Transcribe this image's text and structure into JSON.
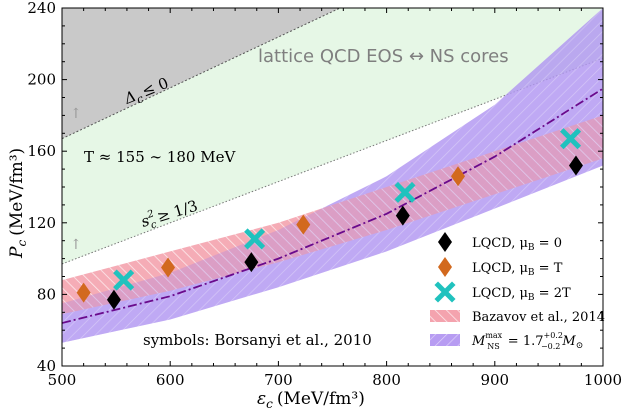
{
  "chart_data": {
    "type": "scatter",
    "title": "",
    "xlabel": "ε_c (MeV/fm³)",
    "ylabel": "P_c (MeV/fm³)",
    "xlim": [
      500,
      1000
    ],
    "ylim": [
      40,
      240
    ],
    "x_ticks": [
      500,
      600,
      700,
      800,
      900,
      1000
    ],
    "y_ticks": [
      40,
      80,
      120,
      160,
      200,
      240
    ],
    "grid": false,
    "legend_position": "bottom-right",
    "regions": {
      "causality": {
        "label": "Δc ≤ 0",
        "color": "#c9c9c9",
        "boundary": [
          [
            500,
            167
          ],
          [
            757,
            240
          ]
        ]
      },
      "temperature_band": {
        "label": "T ≈ 155 ∼ 180 MeV",
        "color": "#e6f7e6",
        "upper": [
          [
            500,
            167
          ],
          [
            757,
            240
          ]
        ],
        "lower": [
          [
            500,
            97
          ],
          [
            1000,
            212
          ]
        ]
      },
      "conformal_bound": {
        "label": "s²c ≥ 1/3",
        "boundary": [
          [
            500,
            97
          ],
          [
            1000,
            212
          ]
        ]
      }
    },
    "bands": [
      {
        "name": "Bazavov et al., 2014",
        "color": "#f4a3ae",
        "upper": [
          [
            500,
            88
          ],
          [
            600,
            104
          ],
          [
            700,
            120
          ],
          [
            800,
            140
          ],
          [
            900,
            160
          ],
          [
            1000,
            180
          ]
        ],
        "lower": [
          [
            500,
            69
          ],
          [
            600,
            82
          ],
          [
            700,
            98
          ],
          [
            800,
            116
          ],
          [
            900,
            136
          ],
          [
            1000,
            156
          ]
        ]
      },
      {
        "name": "M_NS^max = 1.7 (+0.2/−0.2) M_⊙",
        "color": "#a68bf0",
        "upper": [
          [
            500,
            75
          ],
          [
            600,
            92
          ],
          [
            700,
            116
          ],
          [
            800,
            146
          ],
          [
            900,
            186
          ],
          [
            1000,
            240
          ]
        ],
        "lower": [
          [
            500,
            53
          ],
          [
            600,
            66
          ],
          [
            700,
            84
          ],
          [
            800,
            104
          ],
          [
            900,
            128
          ],
          [
            1000,
            152
          ]
        ],
        "center_line": [
          [
            500,
            64
          ],
          [
            600,
            79
          ],
          [
            700,
            100
          ],
          [
            800,
            125
          ],
          [
            900,
            157
          ],
          [
            1000,
            195
          ]
        ]
      }
    ],
    "series": [
      {
        "name": "LQCD, μB = 0",
        "marker": "diamond",
        "color": "#000000",
        "x": [
          548,
          675,
          815,
          975
        ],
        "y": [
          77,
          98,
          124,
          152
        ]
      },
      {
        "name": "LQCD, μB = T",
        "marker": "diamond",
        "color": "#d2691e",
        "x": [
          520,
          598,
          723,
          866
        ],
        "y": [
          81,
          95,
          119,
          146
        ]
      },
      {
        "name": "LQCD, μB = 2T",
        "marker": "cross",
        "color": "#20c2be",
        "x": [
          557,
          678,
          817,
          970
        ],
        "y": [
          88,
          111,
          137,
          167
        ]
      }
    ],
    "legend": [
      "LQCD, μB = 0",
      "LQCD, μB = T",
      "LQCD, μB = 2T",
      "Bazavov et al., 2014",
      "M_NS^max = 1.7 (+0.2/−0.2) M_⊙"
    ],
    "annotations": {
      "main": "lattice QCD EOS ↔ NS cores",
      "source": "symbols: Borsanyi et al., 2010",
      "arrow_glyph": "↑"
    },
    "labels": {
      "x_main": "ε",
      "x_sub": "c",
      "x_unit": "(MeV/fm³)",
      "y_main": "P",
      "y_sub": "c",
      "y_unit": "(MeV/fm³)",
      "delta_main": "Δ",
      "delta_sub": "c",
      "delta_rel": "≤ 0",
      "temp_label": "T ≈ 155 ∼ 180 MeV",
      "s_main": "s",
      "s_sup": "2",
      "s_sub": "c",
      "s_rel": "≥ 1/3",
      "mu0": "LQCD, μ",
      "mu0_sub": "B",
      "mu0_tail": " = 0",
      "mu1": "LQCD, μ",
      "mu1_sub": "B",
      "mu1_tail": " = T",
      "mu2": "LQCD, μ",
      "mu2_sub": "B",
      "mu2_tail": " = 2T",
      "baz": "Bazavov et al., 2014",
      "m_main": "M",
      "m_sup": "max",
      "m_sub": "NS",
      "m_eq": " = 1.7",
      "m_plus": "+0.2",
      "m_minus": "−0.2",
      "m_tail": "M",
      "m_tail_sub": "⊙"
    }
  }
}
